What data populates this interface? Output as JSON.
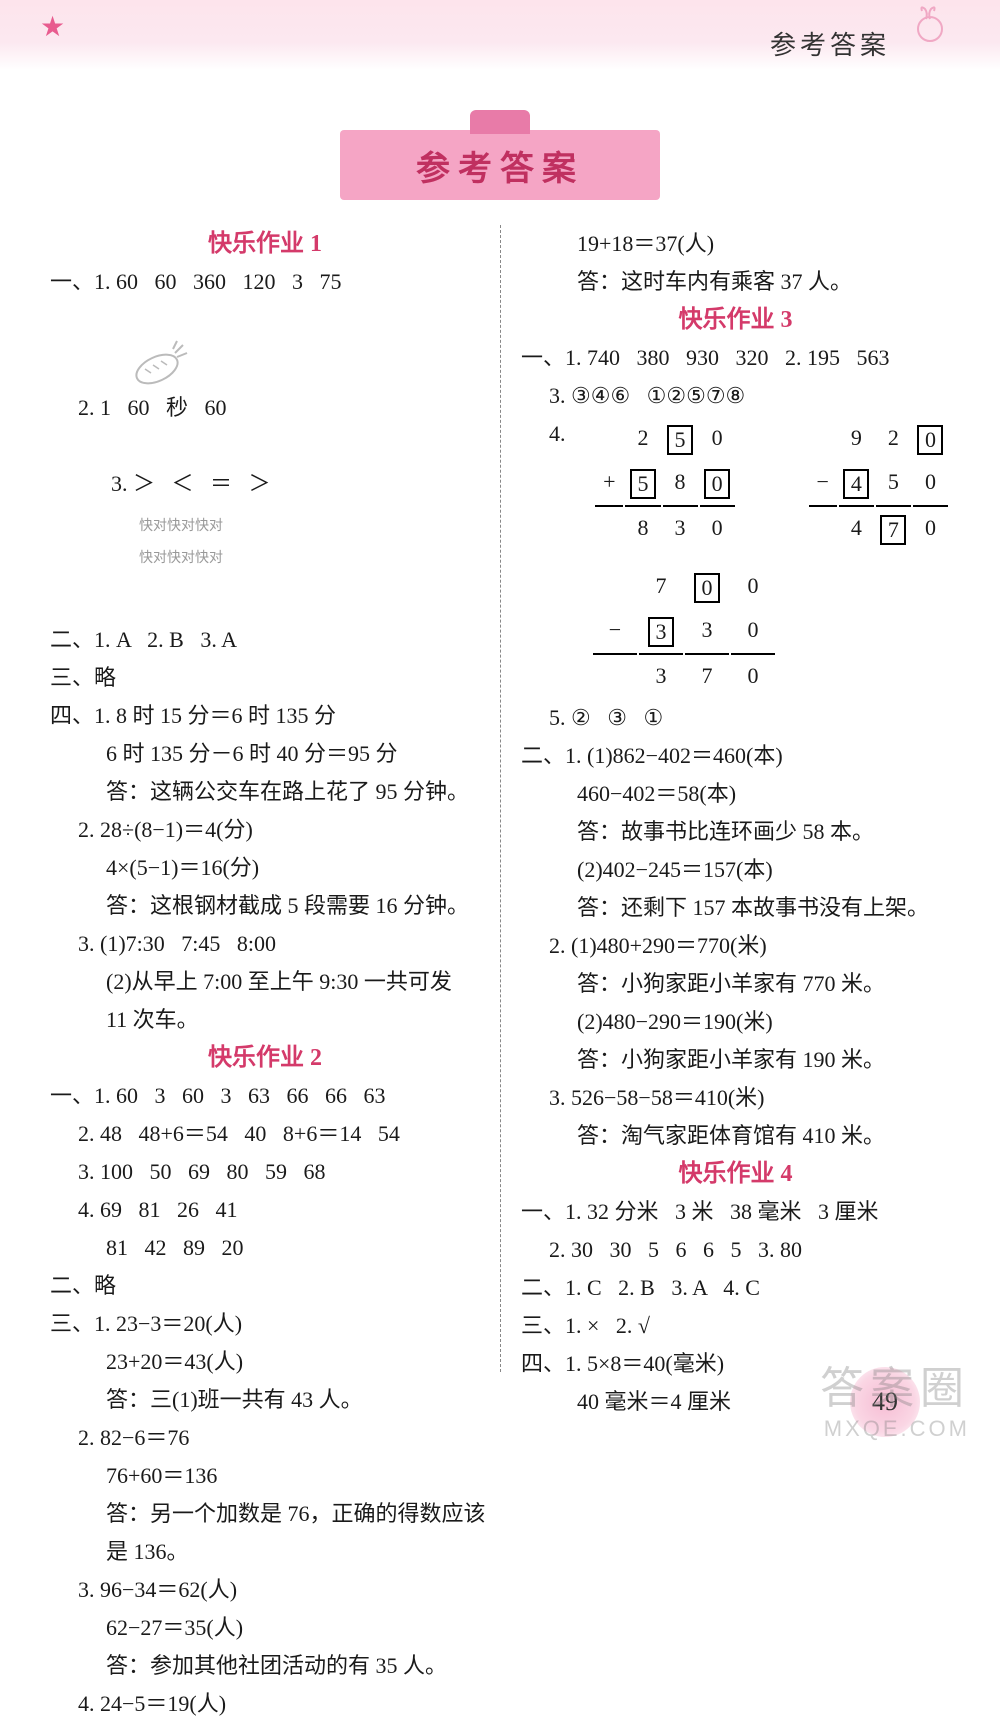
{
  "header": {
    "title": "参考答案"
  },
  "banner": {
    "title": "参考答案"
  },
  "colors": {
    "accent": "#d43a6a",
    "banner_bg": "#f5a5c5",
    "banner_tab": "#e87ba8",
    "band_top": "#fde4ec",
    "text": "#1a1a1a"
  },
  "page_number": "49",
  "watermark": {
    "line1": "答案圈",
    "line2": "MXQE.COM"
  },
  "left": {
    "hw1_title": "快乐作业 1",
    "l1": "一、1. 60   60   360   120   3   75",
    "l2": "2. 1   60   秒   60",
    "l3a": "3. ＞   ＜   ＝   ＞",
    "l3b1": "快对快对快对",
    "l3b2": "快对快对快对",
    "l4": "二、1. A   2. B   3. A",
    "l5": "三、略",
    "l6": "四、1. 8 时 15 分＝6 时 135 分",
    "l7": "6 时 135 分－6 时 40 分＝95 分",
    "l8": "答：这辆公交车在路上花了 95 分钟。",
    "l9": "2. 28÷(8−1)＝4(分)",
    "l10": "4×(5−1)＝16(分)",
    "l11": "答：这根钢材截成 5 段需要 16 分钟。",
    "l12": "3. (1)7:30   7:45   8:00",
    "l13": "(2)从早上 7:00 至上午 9:30 一共可发",
    "l14": "11 次车。",
    "hw2_title": "快乐作业 2",
    "l15": "一、1. 60   3   60   3   63   66   66   63",
    "l16": "2. 48   48+6＝54   40   8+6＝14   54",
    "l17": "3. 100   50   69   80   59   68",
    "l18": "4. 69   81   26   41",
    "l19": "81   42   89   20",
    "l20": "二、略",
    "l21": "三、1. 23−3＝20(人)",
    "l22": "23+20＝43(人)",
    "l23": "答：三(1)班一共有 43 人。",
    "l24": "2. 82−6＝76",
    "l25": "76+60＝136",
    "l26": "答：另一个加数是 76，正确的得数应该",
    "l27": "是 136。",
    "l28": "3. 96−34＝62(人)",
    "l29": "62−27＝35(人)",
    "l30": "答：参加其他社团活动的有 35 人。",
    "l31": "4. 24−5＝19(人)"
  },
  "right": {
    "r1": "19+18＝37(人)",
    "r2": "答：这时车内有乘客 37 人。",
    "hw3_title": "快乐作业 3",
    "r3": "一、1. 740   380   930   320   2. 195   563",
    "r4": "3. ③④⑥   ①②⑤⑦⑧",
    "r5_prefix": "4.",
    "calc1": {
      "row1": [
        "",
        "2",
        "5*",
        "0"
      ],
      "row2": [
        "+",
        "5*",
        "8",
        "0*"
      ],
      "row3": [
        "",
        "8",
        "3",
        "0"
      ]
    },
    "calc2": {
      "row1": [
        "",
        "9",
        "2",
        "0*"
      ],
      "row2": [
        "−",
        "4*",
        "5",
        "0"
      ],
      "row3": [
        "",
        "4",
        "7*",
        "0"
      ]
    },
    "calc3": {
      "row1": [
        "",
        "7",
        "0*",
        "0"
      ],
      "row2": [
        "−",
        "3*",
        "3",
        "0"
      ],
      "row3": [
        "",
        "3",
        "7",
        "0"
      ]
    },
    "r6": "5. ②   ③   ①",
    "r7": "二、1. (1)862−402＝460(本)",
    "r8": "460−402＝58(本)",
    "r9": "答：故事书比连环画少 58 本。",
    "r10": "(2)402−245＝157(本)",
    "r11": "答：还剩下 157 本故事书没有上架。",
    "r12": "2. (1)480+290＝770(米)",
    "r13": "答：小狗家距小羊家有 770 米。",
    "r14": "(2)480−290＝190(米)",
    "r15": "答：小狗家距小羊家有 190 米。",
    "r16": "3. 526−58−58＝410(米)",
    "r17": "答：淘气家距体育馆有 410 米。",
    "hw4_title": "快乐作业 4",
    "r18": "一、1. 32 分米   3 米   38 毫米   3 厘米",
    "r19": "2. 30   30   5   6   6   5   3. 80",
    "r20": "二、1. C   2. B   3. A   4. C",
    "r21": "三、1. ×   2. √",
    "r22": "四、1. 5×8＝40(毫米)",
    "r23": "40 毫米＝4 厘米"
  }
}
